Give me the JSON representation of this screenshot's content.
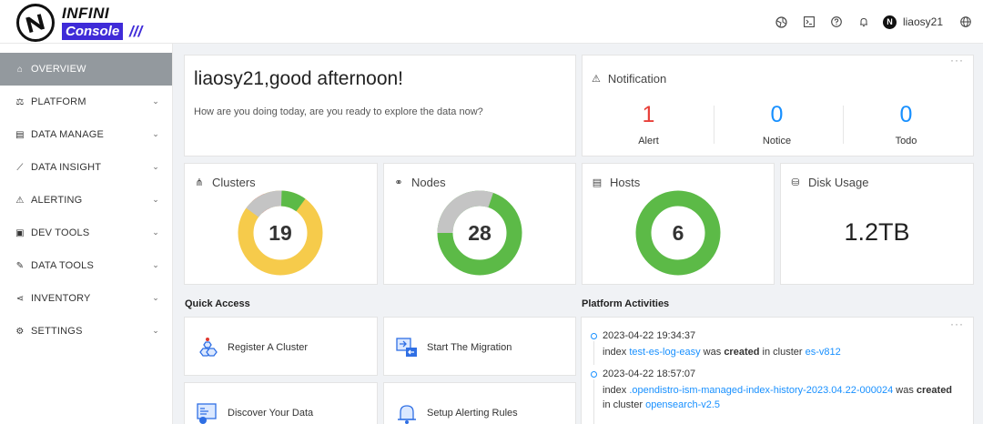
{
  "app": {
    "logo_top": "INFINI",
    "logo_bottom": "Console",
    "logo_slashes": "///"
  },
  "header": {
    "username": "liaosy21"
  },
  "sidebar": {
    "items": [
      {
        "label": "OVERVIEW",
        "active": true
      },
      {
        "label": "PLATFORM"
      },
      {
        "label": "DATA MANAGE"
      },
      {
        "label": "DATA INSIGHT"
      },
      {
        "label": "ALERTING"
      },
      {
        "label": "DEV TOOLS"
      },
      {
        "label": "DATA TOOLS"
      },
      {
        "label": "INVENTORY"
      },
      {
        "label": "SETTINGS"
      }
    ]
  },
  "greeting": {
    "title": "liaosy21,good afternoon!",
    "subtitle": "How are you doing today, are you ready to explore the data now?"
  },
  "notification": {
    "title": "Notification",
    "items": [
      {
        "value": "1",
        "label": "Alert",
        "color": "#e8403a"
      },
      {
        "value": "0",
        "label": "Notice",
        "color": "#1890ff"
      },
      {
        "value": "0",
        "label": "Todo",
        "color": "#1890ff"
      }
    ]
  },
  "stats": {
    "clusters": {
      "title": "Clusters",
      "value": "19"
    },
    "nodes": {
      "title": "Nodes",
      "value": "28"
    },
    "hosts": {
      "title": "Hosts",
      "value": "6"
    },
    "disk": {
      "title": "Disk Usage",
      "value": "1.2TB"
    }
  },
  "colors": {
    "green": "#5cba47",
    "yellow": "#f6cb4b",
    "red": "#e0382f",
    "gray": "#c4c4c4",
    "link": "#1890ff"
  },
  "quick_access": {
    "title": "Quick Access",
    "items": [
      {
        "label": "Register A Cluster"
      },
      {
        "label": "Start The Migration"
      },
      {
        "label": "Discover Your Data"
      },
      {
        "label": "Setup Alerting Rules"
      }
    ]
  },
  "activities": {
    "title": "Platform Activities",
    "items": [
      {
        "time": "2023-04-22 19:34:37",
        "prefix": "index ",
        "index": "test-es-log-easy",
        "verb_pre": " was ",
        "verb": "created",
        "mid": " in cluster ",
        "cluster": "es-v812"
      },
      {
        "time": "2023-04-22 18:57:07",
        "prefix": "index ",
        "index": ".opendistro-ism-managed-index-history-2023.04.22-000024",
        "verb_pre": " was ",
        "verb": "created",
        "line2": "in cluster ",
        "cluster": "opensearch-v2.5"
      }
    ]
  }
}
